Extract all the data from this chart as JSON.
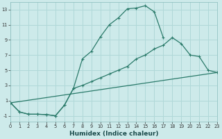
{
  "xlabel": "Humidex (Indice chaleur)",
  "bg_color": "#cdeaea",
  "grid_color": "#b0d8d8",
  "line_color": "#2a7a6a",
  "line1_x": [
    0,
    1,
    2,
    3,
    4,
    5,
    6,
    7,
    8,
    9,
    10,
    11,
    12,
    13,
    14,
    15,
    16,
    17
  ],
  "line1_y": [
    0.7,
    -0.5,
    -0.8,
    -0.8,
    -0.85,
    -1.0,
    0.4,
    2.6,
    6.5,
    7.5,
    9.4,
    11.0,
    11.9,
    13.1,
    13.2,
    13.5,
    12.7,
    9.3
  ],
  "line2_x": [
    0,
    1,
    2,
    3,
    4,
    5,
    6,
    7,
    8,
    9,
    10,
    11,
    12,
    13,
    14,
    15,
    16,
    17,
    18,
    19,
    20,
    21,
    22,
    23
  ],
  "line2_y": [
    0.7,
    -0.5,
    -0.8,
    -0.8,
    -0.85,
    -1.0,
    0.4,
    2.6,
    3.0,
    3.5,
    4.0,
    4.5,
    5.0,
    5.5,
    6.5,
    7.0,
    7.8,
    8.3,
    9.3,
    8.5,
    7.0,
    6.8,
    5.0,
    4.7
  ],
  "line3_x": [
    0,
    23
  ],
  "line3_y": [
    0.7,
    4.7
  ],
  "xlim": [
    0,
    23
  ],
  "ylim": [
    -1.8,
    14
  ],
  "xticks": [
    0,
    1,
    2,
    3,
    4,
    5,
    6,
    7,
    8,
    9,
    10,
    11,
    12,
    13,
    14,
    15,
    16,
    17,
    18,
    19,
    20,
    21,
    22,
    23
  ],
  "yticks": [
    -1,
    1,
    3,
    5,
    7,
    9,
    11,
    13
  ],
  "xlabel_fontsize": 6.5,
  "tick_fontsize": 4.8
}
